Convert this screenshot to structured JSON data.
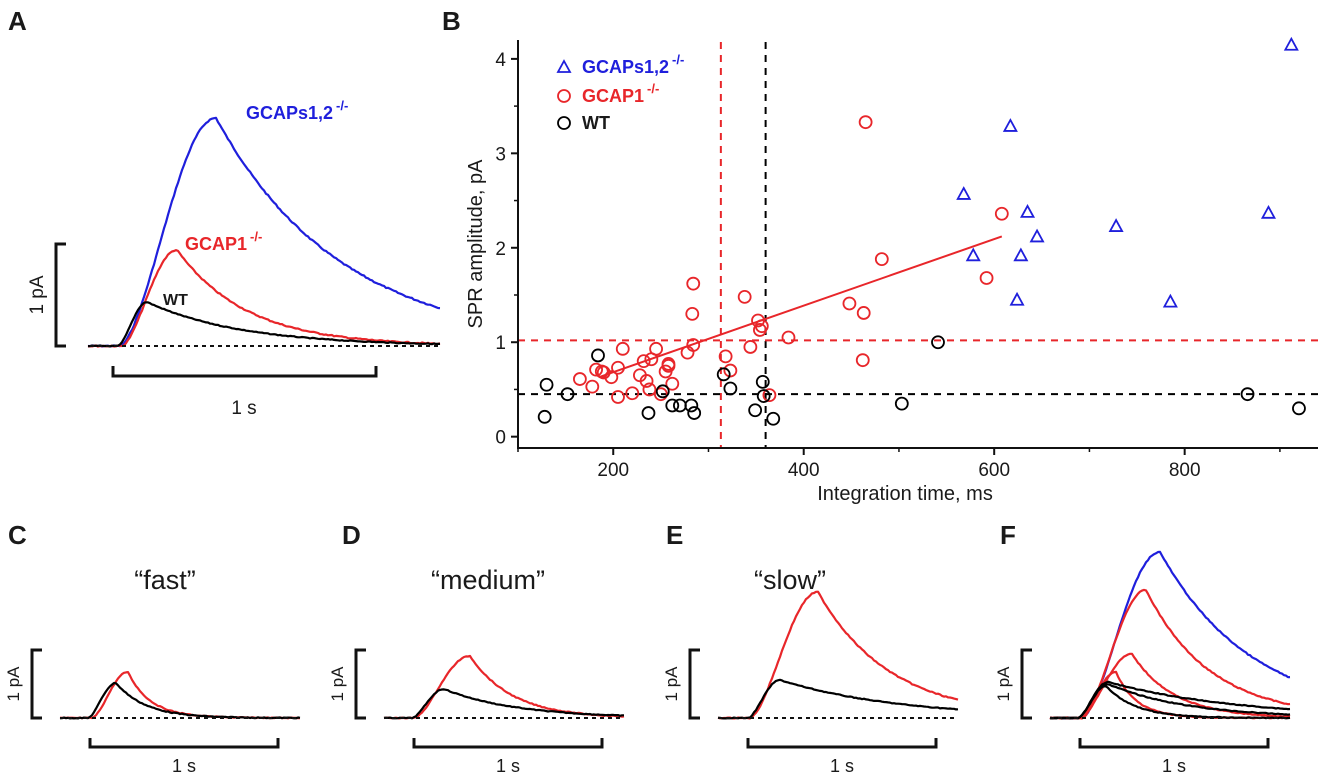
{
  "colors": {
    "wt": "#000000",
    "gcap1": "#e8262a",
    "gcaps12": "#1f1fdc"
  },
  "panel_a": {
    "letter": "A",
    "scale_y": "1 pA",
    "scale_x": "1 s",
    "label_gcaps": "GCAPs1,2",
    "label_gcap1": "GCAP1",
    "label_wt": "WT",
    "superscript": "-/-"
  },
  "panel_b": {
    "letter": "B"
  },
  "panel_c": {
    "letter": "C",
    "title": "“fast”",
    "scale_y": "1 pA",
    "scale_x": "1 s"
  },
  "panel_d": {
    "letter": "D",
    "title": "“medium”",
    "scale_y": "1 pA",
    "scale_x": "1 s"
  },
  "panel_e": {
    "letter": "E",
    "title": "“slow”",
    "scale_y": "1 pA",
    "scale_x": "1 s"
  },
  "panel_f": {
    "letter": "F",
    "scale_y": "1 pA",
    "scale_x": "1 s"
  },
  "chart_data": {
    "type": "scatter",
    "xlabel": "Integration time, ms",
    "ylabel": "SPR amplitude, pA",
    "xlim": [
      100,
      940
    ],
    "ylim": [
      -0.12,
      4.2
    ],
    "xticks": [
      200,
      400,
      600,
      800
    ],
    "yticks": [
      0,
      1,
      2,
      3,
      4
    ],
    "grid": false,
    "legend_position": "top-left",
    "series": [
      {
        "name": "GCAPs1,2",
        "superscript": "-/-",
        "marker": "triangle",
        "color": "#1f1fdc",
        "x": [
          568,
          578,
          617,
          624,
          628,
          635,
          645,
          728,
          785,
          888,
          912
        ],
        "y": [
          2.57,
          1.92,
          3.29,
          1.45,
          1.92,
          2.38,
          2.12,
          2.23,
          1.43,
          2.37,
          4.15
        ]
      },
      {
        "name": "GCAP1",
        "superscript": "-/-",
        "marker": "circle",
        "color": "#e8262a",
        "x": [
          165,
          178,
          182,
          188,
          190,
          198,
          205,
          205,
          210,
          220,
          228,
          232,
          235,
          238,
          240,
          245,
          250,
          255,
          258,
          258,
          262,
          278,
          283,
          284,
          284,
          318,
          323,
          338,
          344,
          352,
          354,
          356,
          364,
          384,
          448,
          462,
          463,
          465,
          482,
          592,
          608
        ],
        "y": [
          0.61,
          0.53,
          0.71,
          0.69,
          0.68,
          0.63,
          0.42,
          0.73,
          0.93,
          0.46,
          0.65,
          0.8,
          0.59,
          0.5,
          0.82,
          0.93,
          0.45,
          0.69,
          0.75,
          0.77,
          0.56,
          0.89,
          1.3,
          1.62,
          0.97,
          0.85,
          0.7,
          1.48,
          0.95,
          1.23,
          1.13,
          1.17,
          0.44,
          1.05,
          1.41,
          0.81,
          1.31,
          3.33,
          1.88,
          1.68,
          2.36
        ]
      },
      {
        "name": "WT",
        "marker": "circle",
        "color": "#000000",
        "x": [
          128,
          130,
          152,
          184,
          237,
          252,
          262,
          270,
          282,
          285,
          316,
          323,
          349,
          357,
          358,
          368,
          503,
          541,
          866,
          920
        ],
        "y": [
          0.21,
          0.55,
          0.45,
          0.86,
          0.25,
          0.48,
          0.33,
          0.33,
          0.33,
          0.25,
          0.66,
          0.51,
          0.28,
          0.58,
          0.43,
          0.19,
          0.35,
          1.0,
          0.45,
          0.3
        ]
      }
    ],
    "fit_line": {
      "color": "#e8262a",
      "x": [
        185,
        608
      ],
      "y": [
        0.63,
        2.12
      ]
    },
    "reference_lines": [
      {
        "orientation": "vertical",
        "x": 313,
        "color": "#e8262a",
        "style": "dashed"
      },
      {
        "orientation": "vertical",
        "x": 360,
        "color": "#000000",
        "style": "dashed"
      },
      {
        "orientation": "horizontal",
        "y": 1.02,
        "color": "#e8262a",
        "style": "dashed"
      },
      {
        "orientation": "horizontal",
        "y": 0.45,
        "color": "#000000",
        "style": "dashed"
      }
    ]
  }
}
